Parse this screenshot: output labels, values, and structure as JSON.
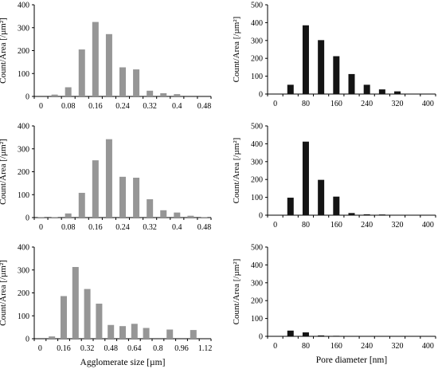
{
  "chart_data": [
    {
      "type": "bar",
      "color": "#969696",
      "x": [
        0,
        0.04,
        0.08,
        0.12,
        0.16,
        0.2,
        0.24,
        0.28,
        0.32,
        0.36,
        0.4,
        0.44,
        0.48
      ],
      "values": [
        0,
        8,
        40,
        205,
        325,
        272,
        127,
        118,
        25,
        14,
        10,
        0,
        0
      ],
      "xticks": [
        "0",
        "0.08",
        "0.16",
        "0.24",
        "0.32",
        "0.4",
        "0.48"
      ],
      "xtick_values": [
        0,
        0.08,
        0.16,
        0.24,
        0.32,
        0.4,
        0.48
      ],
      "xlim": [
        -0.02,
        0.5
      ],
      "ylim": [
        0,
        400
      ],
      "yticks": [
        "0",
        "100",
        "200",
        "300",
        "400"
      ],
      "ylabel": "Count/Area [/µm²]",
      "xlabel": ""
    },
    {
      "type": "bar",
      "color": "#141414",
      "x": [
        0,
        40,
        80,
        120,
        160,
        200,
        240,
        280,
        320,
        360,
        400
      ],
      "values": [
        0,
        52,
        385,
        302,
        212,
        112,
        52,
        26,
        15,
        0,
        0
      ],
      "xticks": [
        "0",
        "80",
        "160",
        "240",
        "320",
        "400"
      ],
      "xtick_values": [
        0,
        80,
        160,
        240,
        320,
        400
      ],
      "xlim": [
        -20,
        420
      ],
      "ylim": [
        0,
        500
      ],
      "yticks": [
        "0",
        "100",
        "200",
        "300",
        "400",
        "500"
      ],
      "ylabel": "Count/Area [/µm²]",
      "xlabel": ""
    },
    {
      "type": "bar",
      "color": "#969696",
      "x": [
        0,
        0.04,
        0.08,
        0.12,
        0.16,
        0.2,
        0.24,
        0.28,
        0.32,
        0.36,
        0.4,
        0.44,
        0.48
      ],
      "values": [
        2,
        2,
        18,
        108,
        250,
        342,
        178,
        174,
        80,
        32,
        22,
        8,
        2
      ],
      "xticks": [
        "0",
        "0.08",
        "0.16",
        "0.24",
        "0.32",
        "0.4",
        "0.48"
      ],
      "xtick_values": [
        0,
        0.08,
        0.16,
        0.24,
        0.32,
        0.4,
        0.48
      ],
      "xlim": [
        -0.02,
        0.5
      ],
      "ylim": [
        0,
        400
      ],
      "yticks": [
        "0",
        "100",
        "200",
        "300",
        "400"
      ],
      "ylabel": "Count/Area [/µm²]",
      "xlabel": ""
    },
    {
      "type": "bar",
      "color": "#141414",
      "x": [
        0,
        40,
        80,
        120,
        160,
        200,
        240,
        280,
        320,
        360,
        400
      ],
      "values": [
        0,
        98,
        412,
        198,
        104,
        12,
        5,
        4,
        0,
        0,
        0
      ],
      "xticks": [
        "0",
        "80",
        "160",
        "240",
        "320",
        "400"
      ],
      "xtick_values": [
        0,
        80,
        160,
        240,
        320,
        400
      ],
      "xlim": [
        -20,
        420
      ],
      "ylim": [
        0,
        500
      ],
      "yticks": [
        "0",
        "100",
        "200",
        "300",
        "400",
        "500"
      ],
      "ylabel": "Count/Area [/µm²]",
      "xlabel": ""
    },
    {
      "type": "bar",
      "color": "#969696",
      "x": [
        0,
        0.08,
        0.16,
        0.24,
        0.32,
        0.4,
        0.48,
        0.56,
        0.64,
        0.72,
        0.8,
        0.88,
        0.96,
        1.04,
        1.12
      ],
      "values": [
        0,
        10,
        186,
        313,
        217,
        153,
        60,
        55,
        65,
        47,
        0,
        40,
        0,
        38,
        0
      ],
      "xticks": [
        "0",
        "0.16",
        "0.32",
        "0.48",
        "0.64",
        "0.8",
        "0.96",
        "1.12"
      ],
      "xtick_values": [
        0,
        0.16,
        0.32,
        0.48,
        0.64,
        0.8,
        0.96,
        1.12
      ],
      "xlim": [
        -0.04,
        1.16
      ],
      "ylim": [
        0,
        400
      ],
      "yticks": [
        "0",
        "100",
        "200",
        "300",
        "400"
      ],
      "ylabel": "Count/Area [/µm²]",
      "xlabel": "Agglomerate size [µm]"
    },
    {
      "type": "bar",
      "color": "#141414",
      "x": [
        0,
        40,
        80,
        120,
        160,
        200,
        240,
        280,
        320,
        360,
        400
      ],
      "values": [
        0,
        32,
        22,
        5,
        3,
        0,
        0,
        0,
        0,
        0,
        0
      ],
      "xticks": [
        "0",
        "80",
        "160",
        "240",
        "320",
        "400"
      ],
      "xtick_values": [
        0,
        80,
        160,
        240,
        320,
        400
      ],
      "xlim": [
        -20,
        420
      ],
      "ylim": [
        0,
        500
      ],
      "yticks": [
        "0",
        "100",
        "200",
        "300",
        "400",
        "500"
      ],
      "ylabel": "Count/Area [/µm²]",
      "xlabel": "Pore diameter [nm]"
    }
  ]
}
